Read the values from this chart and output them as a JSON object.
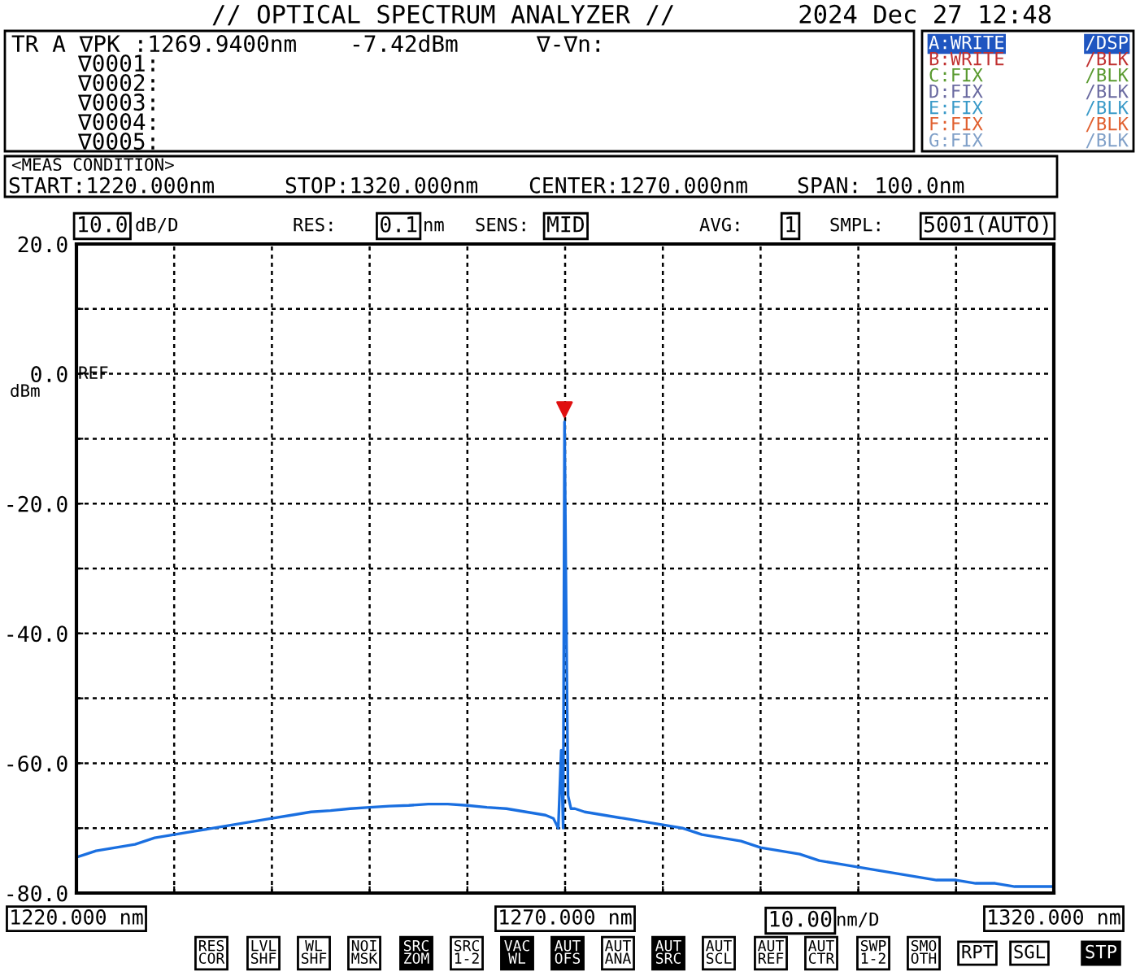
{
  "chart_data": {
    "type": "line",
    "title": "// OPTICAL SPECTRUM ANALYZER //",
    "x": [
      1220,
      1221,
      1222,
      1224,
      1226,
      1228,
      1230,
      1232,
      1234,
      1236,
      1238,
      1240,
      1242,
      1244,
      1246,
      1248,
      1250,
      1252,
      1254,
      1256,
      1258,
      1260,
      1262,
      1264,
      1266,
      1268,
      1268.8,
      1269.3,
      1269.6,
      1269.8,
      1269.94,
      1270.1,
      1270.3,
      1270.6,
      1271,
      1272,
      1274,
      1276,
      1278,
      1280,
      1282,
      1284,
      1286,
      1288,
      1290,
      1292,
      1294,
      1296,
      1298,
      1300,
      1302,
      1304,
      1306,
      1308,
      1310,
      1312,
      1314,
      1316,
      1318,
      1320
    ],
    "series": [
      {
        "color": "#1a6fe0",
        "values": [
          -74.5,
          -74,
          -73.5,
          -73,
          -72.5,
          -71.5,
          -71,
          -70.5,
          -70,
          -69.5,
          -69,
          -68.5,
          -68,
          -67.5,
          -67.3,
          -67,
          -66.8,
          -66.6,
          -66.5,
          -66.3,
          -66.3,
          -66.5,
          -66.8,
          -67,
          -67.5,
          -68,
          -68.5,
          -70,
          -58,
          -70,
          -7.4,
          -35,
          -65,
          -67,
          -67,
          -67.5,
          -68,
          -68.5,
          -69,
          -69.5,
          -70,
          -71,
          -71.5,
          -72,
          -73,
          -73.5,
          -74,
          -75,
          -75.5,
          -76,
          -76.5,
          -77,
          -77.5,
          -78,
          -78,
          -78.5,
          -78.5,
          -79,
          -79,
          -79
        ]
      },
      {
        "type": "scatter",
        "color": "#e01010",
        "marker": "triangle",
        "x": [
          1269.94
        ],
        "values": [
          -5.5
        ]
      }
    ],
    "xlim": [
      1220,
      1320
    ],
    "xticks": [
      {
        "value": 1220,
        "label": "1220.000 nm"
      },
      {
        "value": 1230,
        "label": null
      },
      {
        "value": 1240,
        "label": null
      },
      {
        "value": 1250,
        "label": null
      },
      {
        "value": 1260,
        "label": null
      },
      {
        "value": 1270,
        "label": "1270.000 nm"
      },
      {
        "value": 1280,
        "label": null
      },
      {
        "value": 1290,
        "label": null
      },
      {
        "value": 1300,
        "label": null
      },
      {
        "value": 1310,
        "label": null
      },
      {
        "value": 1320,
        "label": "1320.000 nm"
      }
    ],
    "ylim": [
      -80,
      20
    ],
    "yticks": [
      {
        "value": 20,
        "label": "20.0"
      },
      {
        "value": 10,
        "label": null
      },
      {
        "value": 0,
        "label": "0.0"
      },
      {
        "value": -10,
        "label": null
      },
      {
        "value": -20,
        "label": "-20.0"
      },
      {
        "value": -30,
        "label": null
      },
      {
        "value": -40,
        "label": "-40.0"
      },
      {
        "value": -50,
        "label": null
      },
      {
        "value": -60,
        "label": "-60.0"
      },
      {
        "value": -70,
        "label": null
      },
      {
        "value": -80,
        "label": "-80.0"
      }
    ],
    "grid": true,
    "line_style": "solid",
    "annotations": [
      "2024 Dec 27 12:48",
      "TR A ∇PK :1269.9400nm",
      "-7.42dBm",
      "∇-∇n:",
      "∇0001:",
      "∇0002:",
      "∇0003:",
      "∇0004:",
      "∇0005:",
      "A:WRITE",
      "/DSP",
      "B:WRITE",
      "/BLK",
      "C:FIX",
      "/BLK",
      "D:FIX",
      "/BLK",
      "E:FIX",
      "/BLK",
      "F:FIX",
      "/BLK",
      "G:FIX",
      "/BLK",
      "<MEAS CONDITION>",
      "START:1220.000nm",
      "STOP:1320.000nm",
      "CENTER:1270.000nm",
      "SPAN: 100.0nm",
      "10.0",
      "dB/D",
      "RES:",
      "0.1",
      "nm",
      "SENS:",
      "MID",
      "AVG:",
      "1",
      "SMPL:",
      "5001(AUTO)",
      "REF",
      "dBm",
      "10.00",
      "nm/D",
      "RES\nCOR",
      "LVL\nSHF",
      "WL\nSHF",
      "NOI\nMSK",
      "SRC\nZOM",
      "SRC\n1-2",
      "VAC\nWL",
      "AUT\nOFS",
      "AUT\nANA",
      "AUT\nSRC",
      "AUT\nSCL",
      "AUT\nREF",
      "AUT\nCTR",
      "SWP\n1-2",
      "SMO\nOTH",
      "RPT",
      "SGL",
      "STP"
    ]
  }
}
